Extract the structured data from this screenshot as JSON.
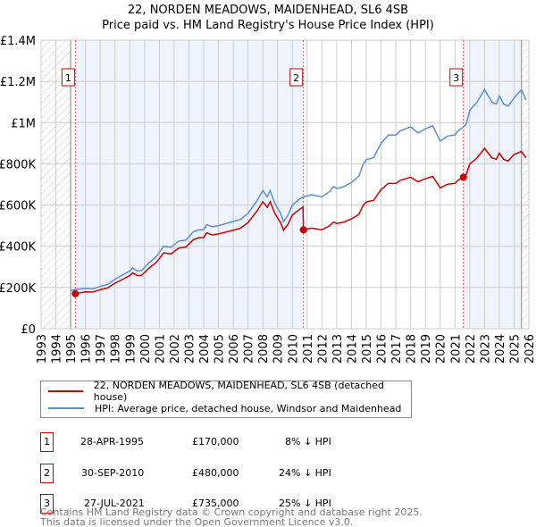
{
  "chart_data": {
    "type": "line",
    "title": "22, NORDEN MEADOWS, MAIDENHEAD, SL6 4SB",
    "subtitle": "Price paid vs. HM Land Registry's House Price Index (HPI)",
    "xlim": [
      1993,
      2026
    ],
    "ylim": [
      0,
      1400000
    ],
    "y_ticks": [
      {
        "v": 0,
        "label": "£0"
      },
      {
        "v": 200000,
        "label": "£200K"
      },
      {
        "v": 400000,
        "label": "£400K"
      },
      {
        "v": 600000,
        "label": "£600K"
      },
      {
        "v": 800000,
        "label": "£800K"
      },
      {
        "v": 1000000,
        "label": "£1M"
      },
      {
        "v": 1200000,
        "label": "£1.2M"
      },
      {
        "v": 1400000,
        "label": "£1.4M"
      }
    ],
    "x_ticks": [
      "1993",
      "1994",
      "1995",
      "1996",
      "1997",
      "1998",
      "1999",
      "2000",
      "2001",
      "2002",
      "2003",
      "2004",
      "2005",
      "2006",
      "2007",
      "2008",
      "2009",
      "2010",
      "2011",
      "2012",
      "2013",
      "2014",
      "2015",
      "2016",
      "2017",
      "2018",
      "2019",
      "2020",
      "2021",
      "2022",
      "2023",
      "2024",
      "2025",
      "2026"
    ],
    "grid": true,
    "series": [
      {
        "name": "22, NORDEN MEADOWS, MAIDENHEAD, SL6 4SB (detached house)",
        "color": "#cc0000",
        "points": [
          [
            1995.32,
            170
          ],
          [
            1996,
            179
          ],
          [
            1996.5,
            178
          ],
          [
            1997,
            189
          ],
          [
            1997.5,
            198
          ],
          [
            1998,
            221
          ],
          [
            1998.5,
            239
          ],
          [
            1999,
            258
          ],
          [
            1999.2,
            271
          ],
          [
            1999.5,
            258
          ],
          [
            1999.8,
            259
          ],
          [
            2000.3,
            294
          ],
          [
            2000.8,
            322
          ],
          [
            2001.3,
            368
          ],
          [
            2001.8,
            363
          ],
          [
            2002.3,
            391
          ],
          [
            2002.8,
            396
          ],
          [
            2003.3,
            432
          ],
          [
            2003.7,
            442
          ],
          [
            2004,
            442
          ],
          [
            2004.2,
            465
          ],
          [
            2004.6,
            455
          ],
          [
            2005,
            460
          ],
          [
            2006,
            478
          ],
          [
            2006.5,
            488
          ],
          [
            2007,
            515
          ],
          [
            2007.6,
            570
          ],
          [
            2008,
            616
          ],
          [
            2008.3,
            589
          ],
          [
            2008.5,
            616
          ],
          [
            2008.8,
            561
          ],
          [
            2009.2,
            515
          ],
          [
            2009.4,
            478
          ],
          [
            2009.7,
            506
          ],
          [
            2010,
            552
          ],
          [
            2010.5,
            580
          ],
          [
            2010.72,
            590
          ],
          [
            2010.75,
            480
          ],
          [
            2011.3,
            488
          ],
          [
            2012,
            480
          ],
          [
            2012.5,
            499
          ],
          [
            2012.8,
            518
          ],
          [
            2013,
            510
          ],
          [
            2013.5,
            518
          ],
          [
            2014,
            533
          ],
          [
            2014.5,
            555
          ],
          [
            2014.8,
            600
          ],
          [
            2015,
            615
          ],
          [
            2015.5,
            623
          ],
          [
            2016,
            675
          ],
          [
            2016.5,
            705
          ],
          [
            2017,
            705
          ],
          [
            2017.3,
            720
          ],
          [
            2018,
            735
          ],
          [
            2018.5,
            713
          ],
          [
            2019,
            728
          ],
          [
            2019.5,
            739
          ],
          [
            2020,
            683
          ],
          [
            2020.5,
            701
          ],
          [
            2021,
            705
          ],
          [
            2021.2,
            720
          ],
          [
            2021.57,
            735
          ],
          [
            2021.75,
            746
          ],
          [
            2022,
            799
          ],
          [
            2022.5,
            829
          ],
          [
            2023,
            875
          ],
          [
            2023.5,
            829
          ],
          [
            2023.8,
            822
          ],
          [
            2024,
            852
          ],
          [
            2024.3,
            822
          ],
          [
            2024.6,
            814
          ],
          [
            2025,
            845
          ],
          [
            2025.5,
            860
          ],
          [
            2025.8,
            830
          ]
        ]
      },
      {
        "name": "HPI: Average price, detached house, Windsor and Maidenhead",
        "color": "#5b8fd4",
        "points": [
          [
            1995,
            185
          ],
          [
            1995.3,
            190
          ],
          [
            1996,
            195
          ],
          [
            1996.5,
            193
          ],
          [
            1997,
            205
          ],
          [
            1997.5,
            215
          ],
          [
            1998,
            240
          ],
          [
            1998.5,
            260
          ],
          [
            1999,
            280
          ],
          [
            1999.2,
            295
          ],
          [
            1999.5,
            280
          ],
          [
            1999.8,
            282
          ],
          [
            2000.3,
            320
          ],
          [
            2000.8,
            350
          ],
          [
            2001.3,
            400
          ],
          [
            2001.8,
            395
          ],
          [
            2002.3,
            425
          ],
          [
            2002.8,
            430
          ],
          [
            2003.3,
            470
          ],
          [
            2003.7,
            480
          ],
          [
            2004,
            480
          ],
          [
            2004.2,
            505
          ],
          [
            2004.6,
            495
          ],
          [
            2005,
            500
          ],
          [
            2006,
            520
          ],
          [
            2006.5,
            530
          ],
          [
            2007,
            560
          ],
          [
            2007.6,
            620
          ],
          [
            2008,
            670
          ],
          [
            2008.3,
            640
          ],
          [
            2008.5,
            670
          ],
          [
            2008.8,
            610
          ],
          [
            2009.2,
            560
          ],
          [
            2009.4,
            520
          ],
          [
            2009.7,
            550
          ],
          [
            2010,
            600
          ],
          [
            2010.5,
            630
          ],
          [
            2010.75,
            640
          ],
          [
            2011.3,
            650
          ],
          [
            2012,
            640
          ],
          [
            2012.5,
            665
          ],
          [
            2012.8,
            690
          ],
          [
            2013,
            680
          ],
          [
            2013.5,
            690
          ],
          [
            2014,
            710
          ],
          [
            2014.5,
            740
          ],
          [
            2014.8,
            800
          ],
          [
            2015,
            820
          ],
          [
            2015.5,
            830
          ],
          [
            2016,
            900
          ],
          [
            2016.5,
            940
          ],
          [
            2017,
            940
          ],
          [
            2017.3,
            960
          ],
          [
            2018,
            980
          ],
          [
            2018.5,
            950
          ],
          [
            2019,
            970
          ],
          [
            2019.5,
            985
          ],
          [
            2020,
            910
          ],
          [
            2020.5,
            935
          ],
          [
            2021,
            940
          ],
          [
            2021.2,
            960
          ],
          [
            2021.5,
            975
          ],
          [
            2021.75,
            990
          ],
          [
            2022,
            1060
          ],
          [
            2022.5,
            1100
          ],
          [
            2023,
            1160
          ],
          [
            2023.5,
            1100
          ],
          [
            2023.8,
            1090
          ],
          [
            2024,
            1130
          ],
          [
            2024.3,
            1090
          ],
          [
            2024.6,
            1080
          ],
          [
            2025,
            1120
          ],
          [
            2025.5,
            1160
          ],
          [
            2025.8,
            1110
          ]
        ]
      }
    ],
    "y_units": "thousands GBP",
    "sales": [
      {
        "n": "1",
        "t": 1995.32,
        "v": 170
      },
      {
        "n": "2",
        "t": 2010.75,
        "v": 480
      },
      {
        "n": "3",
        "t": 2021.57,
        "v": 735
      }
    ],
    "data_start": 1995.0,
    "data_end": 2025.5,
    "legend_placement": "below"
  },
  "transactions": [
    {
      "n": "1",
      "date": "28-APR-1995",
      "price": "£170,000",
      "hpi": "8% ↓ HPI"
    },
    {
      "n": "2",
      "date": "30-SEP-2010",
      "price": "£480,000",
      "hpi": "24% ↓ HPI"
    },
    {
      "n": "3",
      "date": "27-JUL-2021",
      "price": "£735,000",
      "hpi": "25% ↓ HPI"
    }
  ],
  "footer": {
    "line1": "Contains HM Land Registry data © Crown copyright and database right 2025.",
    "line2": "This data is licensed under the Open Government Licence v3.0."
  }
}
